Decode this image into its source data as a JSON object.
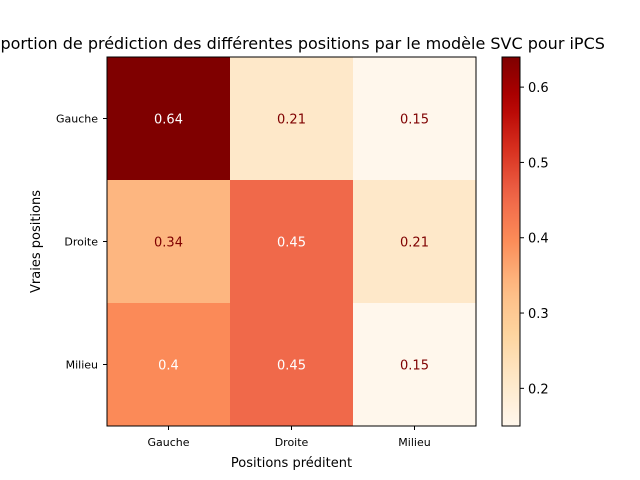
{
  "chart_data": {
    "type": "heatmap",
    "title": "Proportion de prédiction des différentes positions par le modèle SVC pour iPCS",
    "xlabel": "Positions préditent",
    "ylabel": "Vraies positions",
    "x_categories": [
      "Gauche",
      "Droite",
      "Milieu"
    ],
    "y_categories": [
      "Gauche",
      "Droite",
      "Milieu"
    ],
    "values": [
      [
        0.64,
        0.21,
        0.15
      ],
      [
        0.34,
        0.45,
        0.21
      ],
      [
        0.4,
        0.45,
        0.15
      ]
    ],
    "cell_labels": [
      [
        "0.64",
        "0.21",
        "0.15"
      ],
      [
        "0.34",
        "0.45",
        "0.21"
      ],
      [
        "0.4",
        "0.45",
        "0.15"
      ]
    ],
    "colormap": "OrRd",
    "colorbar": {
      "vmin": 0.15,
      "vmax": 0.64,
      "ticks": [
        0.2,
        0.3,
        0.4,
        0.5,
        0.6
      ],
      "tick_labels": [
        "0.2",
        "0.3",
        "0.4",
        "0.5",
        "0.6"
      ]
    },
    "text_colors": {
      "dark": "#7f0000",
      "light": "#ffffff"
    }
  }
}
